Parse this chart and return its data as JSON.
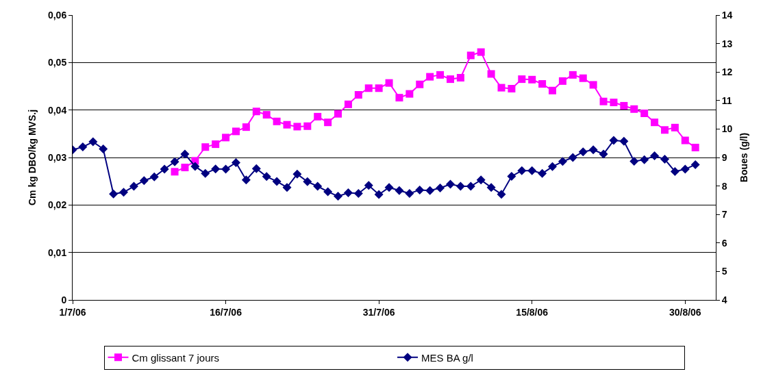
{
  "chart_data": {
    "type": "line",
    "ylabel": "Cm kg DBO/kg MVS.j",
    "y2label": "Boues (g/l)",
    "x": [
      "--07-01",
      "--07-02",
      "--07-03",
      "--07-04",
      "--07-05",
      "--07-06",
      "--07-07",
      "--07-08",
      "--07-09",
      "--07-10",
      "--07-11",
      "--07-12",
      "--07-13",
      "--07-14",
      "--07-15",
      "--07-16",
      "--07-17",
      "--07-18",
      "--07-19",
      "--07-20",
      "--07-21",
      "--07-22",
      "--07-23",
      "--07-24",
      "--07-25",
      "--07-26",
      "--07-27",
      "--07-28",
      "--07-29",
      "--07-30",
      "--07-31",
      "--08-01",
      "--08-02",
      "--08-03",
      "--08-04",
      "--08-05",
      "--08-06",
      "--08-07",
      "--08-08",
      "--08-09",
      "--08-10",
      "--08-11",
      "--08-12",
      "--08-13",
      "--08-14",
      "--08-15",
      "--08-16",
      "--08-17",
      "--08-18",
      "--08-19",
      "--08-20",
      "--08-21",
      "--08-22",
      "--08-23",
      "--08-24",
      "--08-25",
      "--08-26",
      "--08-27",
      "--08-28",
      "--08-29",
      "--08-30",
      "--08-31"
    ],
    "series": [
      {
        "name": "Cm glissant 7 jours",
        "color": "#ff00ff",
        "marker": "square",
        "values": [
          null,
          null,
          null,
          null,
          null,
          null,
          null,
          null,
          null,
          null,
          0.027,
          0.0279,
          0.0293,
          0.0322,
          0.0328,
          0.0342,
          0.0355,
          0.0364,
          0.0397,
          0.039,
          0.0376,
          0.0369,
          0.0365,
          0.0366,
          0.0386,
          0.0374,
          0.0392,
          0.0412,
          0.0432,
          0.0446,
          0.0446,
          0.0457,
          0.0426,
          0.0434,
          0.0454,
          0.047,
          0.0474,
          0.0465,
          0.0468,
          0.0515,
          0.0522,
          0.0476,
          0.0447,
          0.0445,
          0.0465,
          0.0464,
          0.0455,
          0.0441,
          0.0461,
          0.0474,
          0.0467,
          0.0453,
          0.0418,
          0.0416,
          0.0409,
          0.0402,
          0.0393,
          0.0374,
          0.0358,
          0.0363,
          0.0336,
          0.0321
        ]
      },
      {
        "name": "MES BA g/l",
        "color": "#000080",
        "marker": "diamond",
        "axis": "y2",
        "values": [
          9.27,
          9.37,
          9.55,
          9.3,
          7.72,
          7.78,
          7.99,
          8.19,
          8.32,
          8.59,
          8.85,
          9.12,
          8.69,
          8.44,
          8.6,
          8.59,
          8.82,
          8.21,
          8.61,
          8.33,
          8.16,
          7.95,
          8.42,
          8.15,
          7.99,
          7.8,
          7.64,
          7.76,
          7.74,
          8.02,
          7.7,
          7.95,
          7.84,
          7.74,
          7.86,
          7.84,
          7.93,
          8.06,
          7.99,
          7.99,
          8.21,
          7.95,
          7.71,
          8.34,
          8.54,
          8.54,
          8.44,
          8.68,
          8.86,
          9.0,
          9.2,
          9.27,
          9.12,
          9.6,
          9.57,
          8.87,
          8.92,
          9.06,
          8.94,
          8.51,
          8.59,
          8.75
        ]
      }
    ],
    "xlim": [
      "--07-01",
      "--09-02"
    ],
    "xticks": [
      {
        "value": "--07-01",
        "label": "1/7/06"
      },
      {
        "value": "--07-16",
        "label": "16/7/06"
      },
      {
        "value": "--07-31",
        "label": "31/7/06"
      },
      {
        "value": "--08-15",
        "label": "15/8/06"
      },
      {
        "value": "--08-30",
        "label": "30/8/06"
      }
    ],
    "ylim": [
      0,
      0.06
    ],
    "yticks": [
      {
        "value": 0,
        "label": "0"
      },
      {
        "value": 0.01,
        "label": "0,01"
      },
      {
        "value": 0.02,
        "label": "0,02"
      },
      {
        "value": 0.03,
        "label": "0,03"
      },
      {
        "value": 0.04,
        "label": "0,04"
      },
      {
        "value": 0.05,
        "label": "0,05"
      },
      {
        "value": 0.06,
        "label": "0,06"
      }
    ],
    "y2lim": [
      4,
      14
    ],
    "y2ticks": [
      4,
      5,
      6,
      7,
      8,
      9,
      10,
      11,
      12,
      13,
      14
    ],
    "grid": "y",
    "legend": "bottom",
    "line_style": "solid"
  }
}
